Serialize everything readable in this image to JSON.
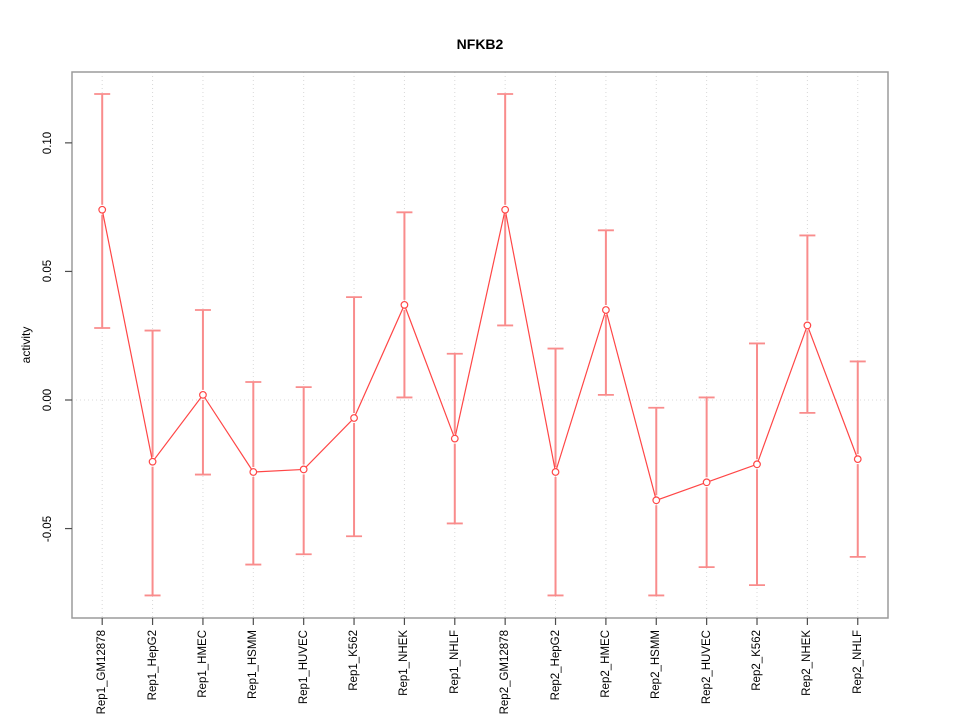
{
  "figure": {
    "title": "NFKB2",
    "ylabel": "activity",
    "colors": {
      "series": "#FF4646",
      "error_bar": "#F98C8C",
      "grid": "#D8D8D8",
      "zero_line": "#D8D8D8",
      "box": "#9B9B9B",
      "tick": "#4D4D4D",
      "text": "#000000"
    }
  },
  "chart_data": {
    "type": "line",
    "title": "NFKB2",
    "xlabel": "",
    "ylabel": "activity",
    "legend": "none",
    "grid": "vertical dotted gridline per category; dotted horizontal line at y=0",
    "point_style": "open-circle",
    "error_bars": true,
    "ylim": [
      -0.084,
      0.128
    ],
    "ytick_values": [
      -0.05,
      0.0,
      0.05,
      0.1
    ],
    "ytick_labels": [
      "-0.05",
      "0.00",
      "0.05",
      "0.10"
    ],
    "categories": [
      "Rep1_GM12878",
      "Rep1_HepG2",
      "Rep1_HMEC",
      "Rep1_HSMM",
      "Rep1_HUVEC",
      "Rep1_K562",
      "Rep1_NHEK",
      "Rep1_NHLF",
      "Rep2_GM12878",
      "Rep2_HepG2",
      "Rep2_HMEC",
      "Rep2_HSMM",
      "Rep2_HUVEC",
      "Rep2_K562",
      "Rep2_NHEK",
      "Rep2_NHLF"
    ],
    "series": [
      {
        "name": "activity",
        "values": [
          0.074,
          -0.024,
          0.002,
          -0.028,
          -0.027,
          -0.007,
          0.037,
          -0.015,
          0.074,
          -0.028,
          0.035,
          -0.039,
          -0.032,
          -0.025,
          0.029,
          -0.023
        ],
        "ci_low": [
          0.028,
          -0.076,
          -0.029,
          -0.064,
          -0.06,
          -0.053,
          0.001,
          -0.048,
          0.029,
          -0.076,
          0.002,
          -0.076,
          -0.065,
          -0.072,
          -0.005,
          -0.061
        ],
        "ci_high": [
          0.119,
          0.027,
          0.035,
          0.007,
          0.005,
          0.04,
          0.073,
          0.018,
          0.119,
          0.02,
          0.066,
          -0.003,
          0.001,
          0.022,
          0.064,
          0.015
        ]
      }
    ]
  }
}
